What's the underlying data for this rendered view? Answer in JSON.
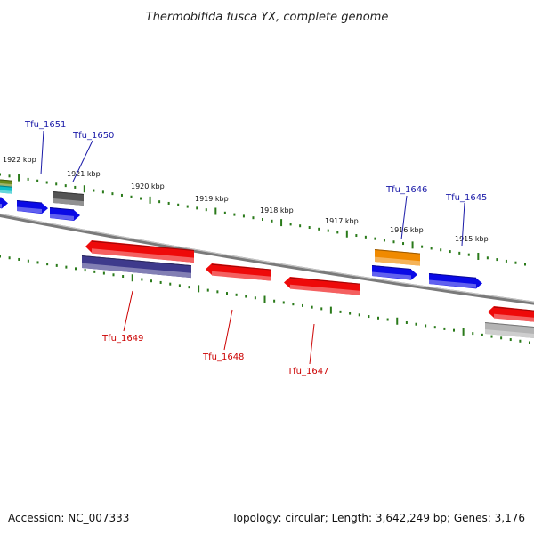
{
  "title": "Thermobifida fusca YX, complete genome",
  "footer": {
    "accession": "Accession: NC_007333",
    "summary": "Topology: circular; Length: 3,642,249 bp; Genes: 3,176"
  },
  "colors": {
    "backbone": "#7a7a7a",
    "tick": "#2a7a1a",
    "forward_label": "#1a1aa8",
    "reverse_label": "#cc0000"
  },
  "scale_labels": [
    "1922 kbp",
    "1921 kbp",
    "1920 kbp",
    "1919 kbp",
    "1918 kbp",
    "1917 kbp",
    "1916 kbp",
    "1915 kbp"
  ],
  "gene_labels": {
    "forward": [
      "Tfu_1651",
      "Tfu_1650",
      "Tfu_1646",
      "Tfu_1645"
    ],
    "reverse": [
      "Tfu_1649",
      "Tfu_1648",
      "Tfu_1647"
    ]
  },
  "feature_colors": {
    "blue": "#0a0ae6",
    "red": "#ee0a0a",
    "dark_gray": "#555555",
    "navy": "#3e3a8c",
    "orange": "#f08a00",
    "olive": "#6a8a1a",
    "cyan": "#10c0c8",
    "light_gray": "#b4b4b4"
  }
}
